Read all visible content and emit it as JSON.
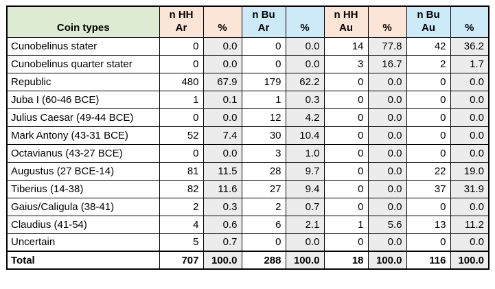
{
  "table": {
    "columns": [
      {
        "id": "coin-types",
        "label": "Coin types",
        "header_bg": "#dcebd2",
        "body_bg": "#ffffff"
      },
      {
        "id": "n-hh-ar",
        "label": "n HH\nAr",
        "header_bg": "#fce4d6",
        "body_bg": "#ffffff"
      },
      {
        "id": "pct-hh-ar",
        "label": "%",
        "header_bg": "#fce4d6",
        "body_bg": "#ececec"
      },
      {
        "id": "n-bu-ar",
        "label": "n Bu\nAr",
        "header_bg": "#cdeaf8",
        "body_bg": "#ffffff"
      },
      {
        "id": "pct-bu-ar",
        "label": "%",
        "header_bg": "#cdeaf8",
        "body_bg": "#ececec"
      },
      {
        "id": "n-hh-au",
        "label": "n HH\nAu",
        "header_bg": "#fce4d6",
        "body_bg": "#ffffff"
      },
      {
        "id": "pct-hh-au",
        "label": "%",
        "header_bg": "#fce4d6",
        "body_bg": "#ececec"
      },
      {
        "id": "n-bu-au",
        "label": "n Bu\nAu",
        "header_bg": "#cdeaf8",
        "body_bg": "#ffffff"
      },
      {
        "id": "pct-bu-au",
        "label": "%",
        "header_bg": "#cdeaf8",
        "body_bg": "#ececec"
      }
    ],
    "rows": [
      {
        "label": "Cunobelinus stater",
        "values": [
          "0",
          "0.0",
          "0",
          "0.0",
          "14",
          "77.8",
          "42",
          "36.2"
        ]
      },
      {
        "label": "Cunobelinus quarter stater",
        "values": [
          "0",
          "0.0",
          "0",
          "0.0",
          "3",
          "16.7",
          "2",
          "1.7"
        ]
      },
      {
        "label": "Republic",
        "values": [
          "480",
          "67.9",
          "179",
          "62.2",
          "0",
          "0.0",
          "0",
          "0.0"
        ]
      },
      {
        "label": "Juba I (60-46 BCE)",
        "values": [
          "1",
          "0.1",
          "1",
          "0.3",
          "0",
          "0.0",
          "0",
          "0.0"
        ]
      },
      {
        "label": "Julius Caesar (49-44 BCE)",
        "values": [
          "0",
          "0.0",
          "12",
          "4.2",
          "0",
          "0.0",
          "0",
          "0.0"
        ]
      },
      {
        "label": "Mark Antony (43-31 BCE)",
        "values": [
          "52",
          "7.4",
          "30",
          "10.4",
          "0",
          "0.0",
          "0",
          "0.0"
        ]
      },
      {
        "label": "Octavianus (43-27 BCE)",
        "values": [
          "0",
          "0.0",
          "3",
          "1.0",
          "0",
          "0.0",
          "0",
          "0.0"
        ]
      },
      {
        "label": "Augustus (27 BCE-14)",
        "values": [
          "81",
          "11.5",
          "28",
          "9.7",
          "0",
          "0.0",
          "22",
          "19.0"
        ]
      },
      {
        "label": "Tiberius (14-38)",
        "values": [
          "82",
          "11.6",
          "27",
          "9.4",
          "0",
          "0.0",
          "37",
          "31.9"
        ]
      },
      {
        "label": "Gaius/Caligula (38-41)",
        "values": [
          "2",
          "0.3",
          "2",
          "0.7",
          "0",
          "0.0",
          "0",
          "0.0"
        ]
      },
      {
        "label": "Claudius (41-54)",
        "values": [
          "4",
          "0.6",
          "6",
          "2.1",
          "1",
          "5.6",
          "13",
          "11.2"
        ]
      },
      {
        "label": "Uncertain",
        "values": [
          "5",
          "0.7",
          "0",
          "0.0",
          "0",
          "0.0",
          "0",
          "0.0"
        ]
      }
    ],
    "total_row": {
      "label": "Total",
      "values": [
        "707",
        "100.0",
        "288",
        "100.0",
        "18",
        "100.0",
        "116",
        "100.0"
      ]
    }
  },
  "colors": {
    "header_green": "#dcebd2",
    "header_peach": "#fce4d6",
    "header_blue": "#cdeaf8",
    "pct_column_gray": "#ececec",
    "border_black": "#000000"
  },
  "chart_data": {
    "type": "table",
    "columns": [
      "Coin types",
      "n HH Ar",
      "%",
      "n Bu Ar",
      "%",
      "n HH Au",
      "%",
      "n Bu Au",
      "%"
    ],
    "rows": [
      [
        "Cunobelinus stater",
        0,
        0.0,
        0,
        0.0,
        14,
        77.8,
        42,
        36.2
      ],
      [
        "Cunobelinus quarter stater",
        0,
        0.0,
        0,
        0.0,
        3,
        16.7,
        2,
        1.7
      ],
      [
        "Republic",
        480,
        67.9,
        179,
        62.2,
        0,
        0.0,
        0,
        0.0
      ],
      [
        "Juba I (60-46 BCE)",
        1,
        0.1,
        1,
        0.3,
        0,
        0.0,
        0,
        0.0
      ],
      [
        "Julius Caesar (49-44 BCE)",
        0,
        0.0,
        12,
        4.2,
        0,
        0.0,
        0,
        0.0
      ],
      [
        "Mark Antony (43-31 BCE)",
        52,
        7.4,
        30,
        10.4,
        0,
        0.0,
        0,
        0.0
      ],
      [
        "Octavianus (43-27 BCE)",
        0,
        0.0,
        3,
        1.0,
        0,
        0.0,
        0,
        0.0
      ],
      [
        "Augustus (27 BCE-14)",
        81,
        11.5,
        28,
        9.7,
        0,
        0.0,
        22,
        19.0
      ],
      [
        "Tiberius (14-38)",
        82,
        11.6,
        27,
        9.4,
        0,
        0.0,
        37,
        31.9
      ],
      [
        "Gaius/Caligula (38-41)",
        2,
        0.3,
        2,
        0.7,
        0,
        0.0,
        0,
        0.0
      ],
      [
        "Claudius (41-54)",
        4,
        0.6,
        6,
        2.1,
        1,
        5.6,
        13,
        11.2
      ],
      [
        "Uncertain",
        5,
        0.7,
        0,
        0.0,
        0,
        0.0,
        0,
        0.0
      ],
      [
        "Total",
        707,
        100.0,
        288,
        100.0,
        18,
        100.0,
        116,
        100.0
      ]
    ]
  }
}
